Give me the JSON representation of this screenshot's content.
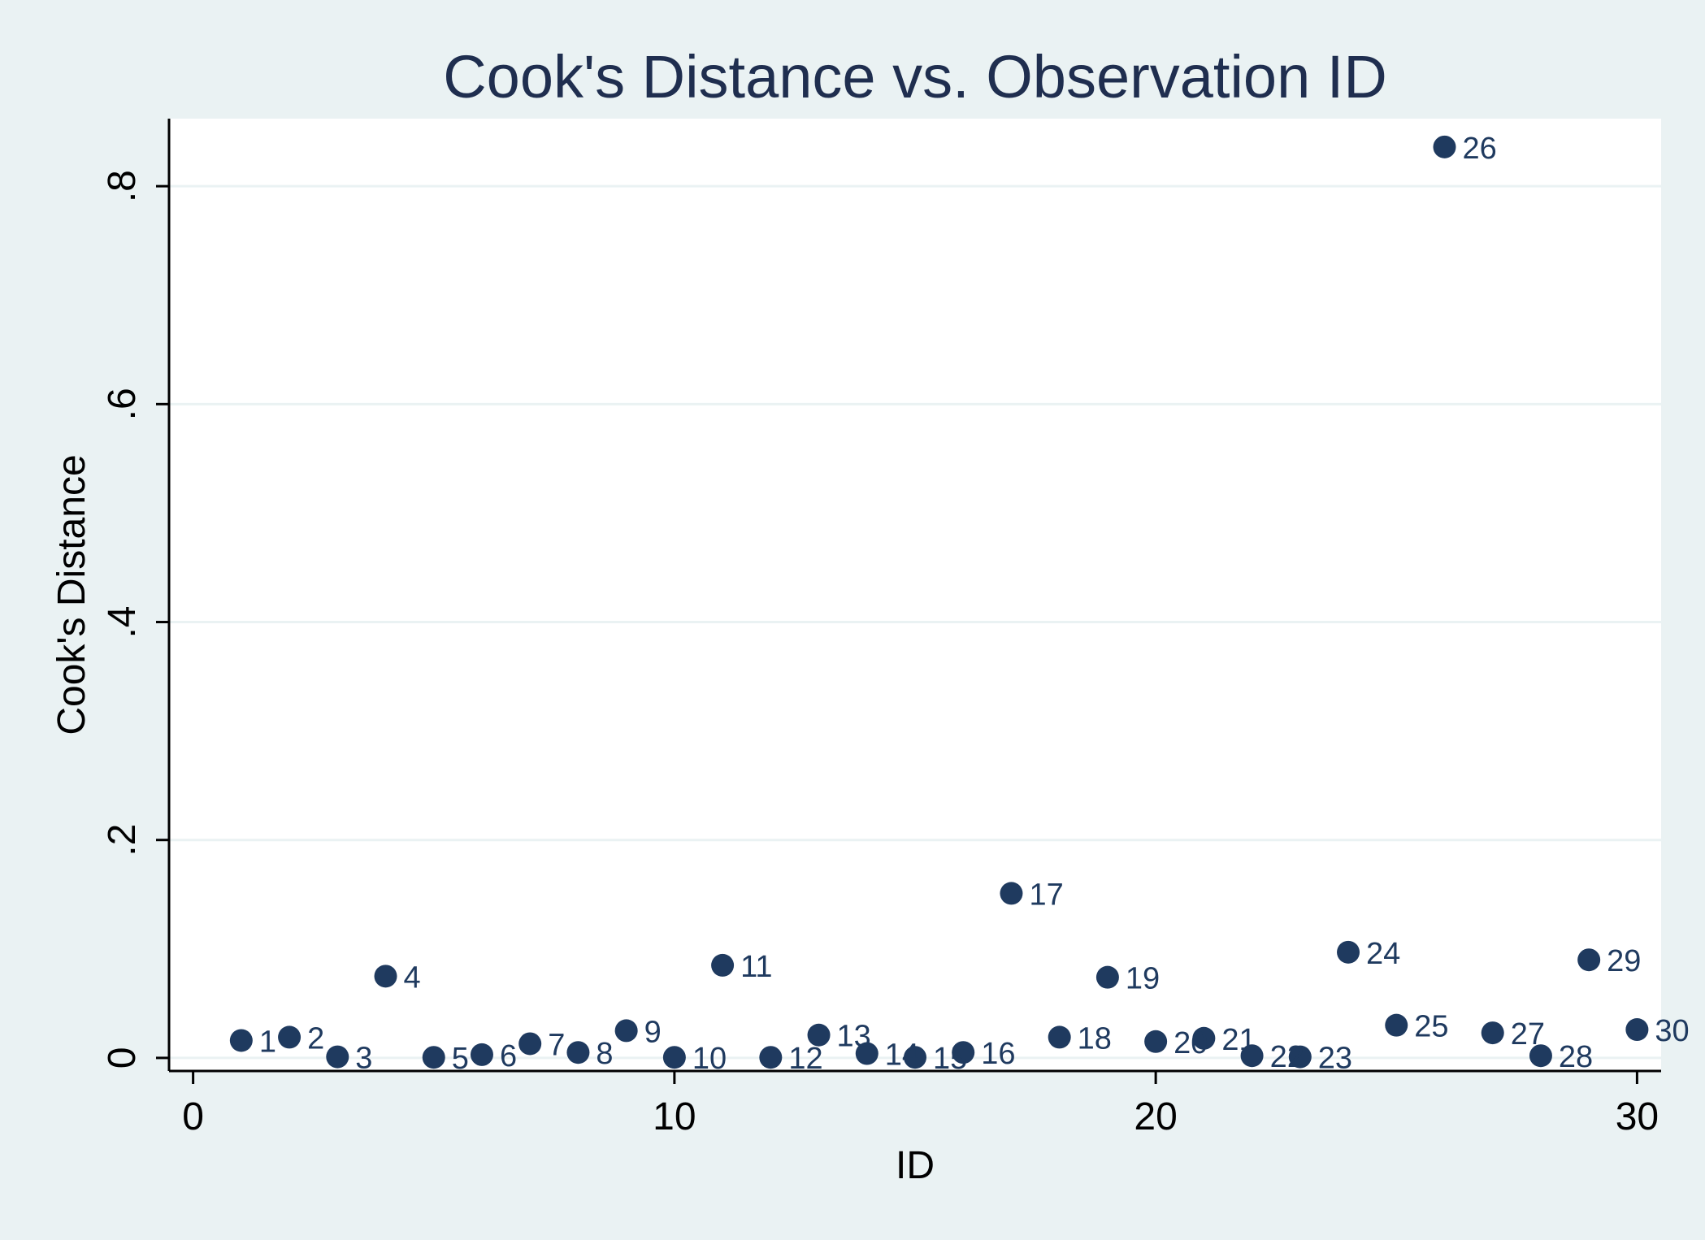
{
  "chart_data": {
    "type": "scatter",
    "title": "Cook's Distance vs. Observation ID",
    "xlabel": "ID",
    "ylabel": "Cook's Distance",
    "xlim": [
      -0.5,
      30.5
    ],
    "ylim": [
      -0.012,
      0.862
    ],
    "xticks": [
      {
        "value": 0,
        "label": "0"
      },
      {
        "value": 10,
        "label": "10"
      },
      {
        "value": 20,
        "label": "20"
      },
      {
        "value": 30,
        "label": "30"
      }
    ],
    "yticks": [
      {
        "value": 0,
        "label": "0"
      },
      {
        "value": 0.2,
        "label": ".2"
      },
      {
        "value": 0.4,
        "label": ".4"
      },
      {
        "value": 0.6,
        "label": ".6"
      },
      {
        "value": 0.8,
        "label": ".8"
      }
    ],
    "grid": "horizontal",
    "marker_color": "#1f3a5f",
    "points": [
      {
        "x": 1,
        "y": 0.016,
        "label": "1"
      },
      {
        "x": 2,
        "y": 0.019,
        "label": "2"
      },
      {
        "x": 3,
        "y": 0.001,
        "label": "3"
      },
      {
        "x": 4,
        "y": 0.075,
        "label": "4"
      },
      {
        "x": 5,
        "y": 0.0005,
        "label": "5"
      },
      {
        "x": 6,
        "y": 0.003,
        "label": "6"
      },
      {
        "x": 7,
        "y": 0.013,
        "label": "7"
      },
      {
        "x": 8,
        "y": 0.005,
        "label": "8"
      },
      {
        "x": 9,
        "y": 0.025,
        "label": "9"
      },
      {
        "x": 10,
        "y": 0.0005,
        "label": "10"
      },
      {
        "x": 11,
        "y": 0.085,
        "label": "11"
      },
      {
        "x": 12,
        "y": 0.0005,
        "label": "12"
      },
      {
        "x": 13,
        "y": 0.021,
        "label": "13"
      },
      {
        "x": 14,
        "y": 0.004,
        "label": "14"
      },
      {
        "x": 15,
        "y": 0.0005,
        "label": "15"
      },
      {
        "x": 16,
        "y": 0.005,
        "label": "16"
      },
      {
        "x": 17,
        "y": 0.151,
        "label": "17"
      },
      {
        "x": 18,
        "y": 0.019,
        "label": "18"
      },
      {
        "x": 19,
        "y": 0.074,
        "label": "19"
      },
      {
        "x": 20,
        "y": 0.015,
        "label": "20"
      },
      {
        "x": 21,
        "y": 0.018,
        "label": "21"
      },
      {
        "x": 22,
        "y": 0.002,
        "label": "22"
      },
      {
        "x": 23,
        "y": 0.001,
        "label": "23"
      },
      {
        "x": 24,
        "y": 0.097,
        "label": "24"
      },
      {
        "x": 25,
        "y": 0.03,
        "label": "25"
      },
      {
        "x": 26,
        "y": 0.836,
        "label": "26"
      },
      {
        "x": 27,
        "y": 0.023,
        "label": "27"
      },
      {
        "x": 28,
        "y": 0.002,
        "label": "28"
      },
      {
        "x": 29,
        "y": 0.09,
        "label": "29"
      },
      {
        "x": 30,
        "y": 0.026,
        "label": "30"
      }
    ]
  }
}
